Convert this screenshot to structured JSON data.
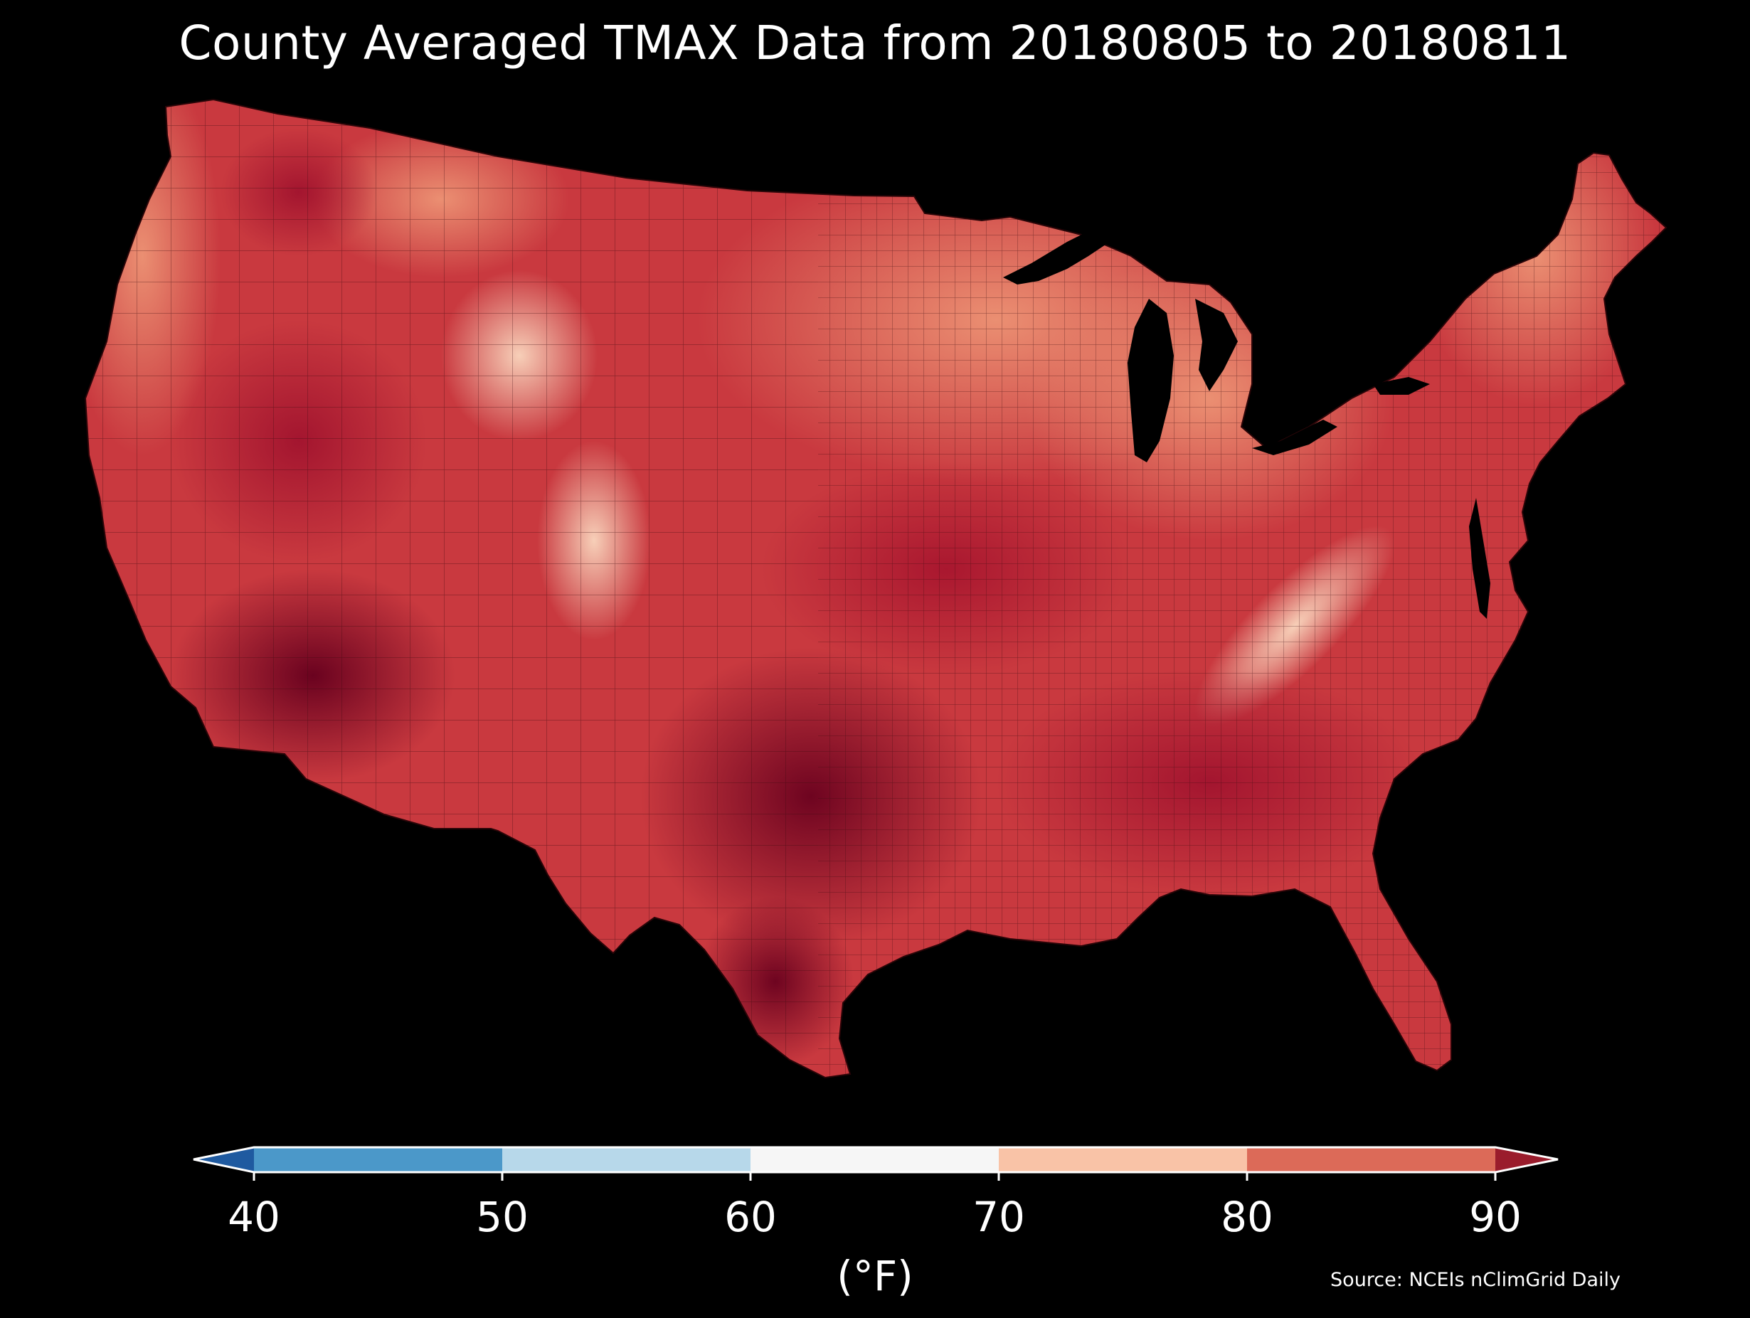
{
  "title": "County Averaged TMAX Data from 20180805 to 20180811",
  "source": "Source: NCEIs nClimGrid Daily",
  "colorbar": {
    "unit": "(°F)",
    "ticks": [
      "40",
      "50",
      "60",
      "70",
      "80",
      "90"
    ],
    "bins": [
      {
        "range": "<40",
        "color": "#1f5aa0"
      },
      {
        "range": "40-50",
        "color": "#4b98c9"
      },
      {
        "range": "50-60",
        "color": "#b7d8ea"
      },
      {
        "range": "60-70",
        "color": "#f6f6f6"
      },
      {
        "range": "70-80",
        "color": "#f9c3a7"
      },
      {
        "range": "80-90",
        "color": "#dc6a58"
      },
      {
        "range": ">90",
        "color": "#9a1c2c"
      }
    ],
    "extend": "both"
  },
  "map": {
    "region": "Contiguous United States",
    "unit_of_area": "county",
    "variable": "TMAX",
    "period": "20180805 to 20180811",
    "background_color": "#000000",
    "fill_colors": {
      "upper_70s": "#f1a585",
      "low_80s": "#df6e5b",
      "mid_80s": "#c9393f",
      "upper_80s": "#b11d32",
      "low_90s": "#8f0c28",
      "mid_90s": "#6e0420"
    }
  }
}
